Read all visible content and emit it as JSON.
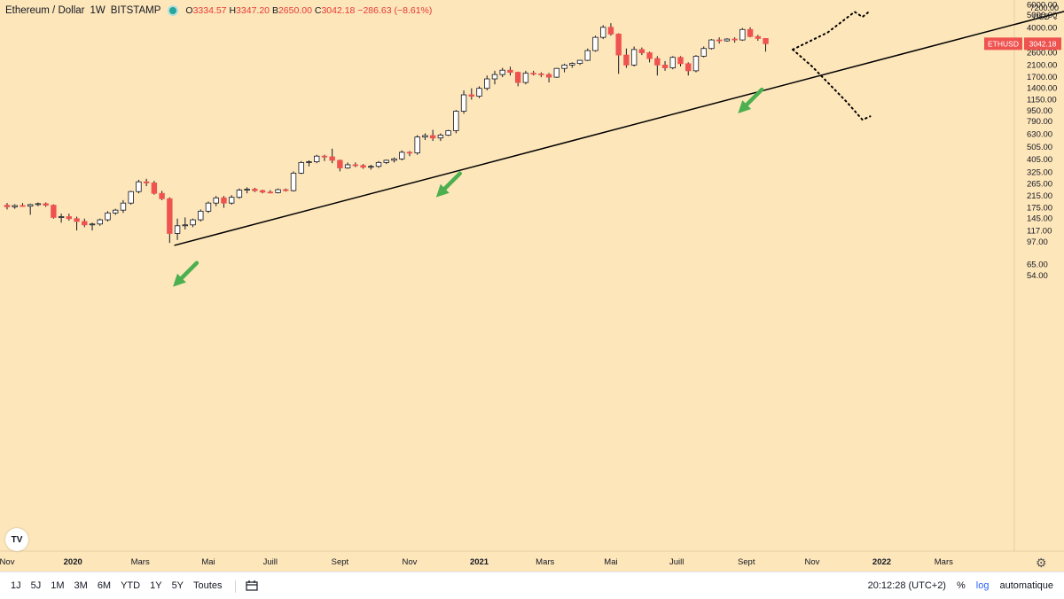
{
  "header": {
    "symbol": "Ethereum / Dollar",
    "interval": "1W",
    "exchange": "BITSTAMP",
    "o_label": "O",
    "o_value": "3334.57",
    "h_label": "H",
    "h_value": "3347.20",
    "b_label": "B",
    "b_value": "2650.00",
    "c_label": "C",
    "c_value": "3042.18",
    "change": "−286.63 (−8.61%)"
  },
  "currency": {
    "line1": "7200.00",
    "line2": "USD ⌄"
  },
  "price_tag": {
    "ticker": "ETHUSD",
    "value": "3042.18"
  },
  "logo_text": "TV",
  "toolbar": {
    "ranges": [
      "1J",
      "5J",
      "1M",
      "3M",
      "6M",
      "YTD",
      "1Y",
      "5Y",
      "Toutes"
    ],
    "time": "20:12:28 (UTC+2)",
    "percent": "%",
    "log": "log",
    "auto": "automatique"
  },
  "colors": {
    "up_body": "#ffffff",
    "down_body": "#ef5350",
    "wick": "#131722",
    "background": "#fde6ba",
    "arrow": "#4caf50"
  },
  "chart_data": {
    "type": "candlestick",
    "scale": "log",
    "ylim": [
      49,
      7200
    ],
    "y_ticks": [
      6000,
      5000,
      4000,
      3200,
      2600,
      2100,
      1700,
      1400,
      1150,
      950,
      790,
      630,
      505,
      405,
      325,
      265,
      215,
      175,
      145,
      117,
      97,
      65,
      54
    ],
    "y_tick_labels": [
      "6000.00",
      "5000.00",
      "4000.00",
      "3200.00",
      "2600.00",
      "2100.00",
      "1700.00",
      "1400.00",
      "1150.00",
      "950.00",
      "790.00",
      "630.00",
      "505.00",
      "405.00",
      "325.00",
      "265.00",
      "215.00",
      "175.00",
      "145.00",
      "117.00",
      "97.00",
      "65.00",
      "54.00"
    ],
    "x_labels": [
      "Nov",
      "2020",
      "Mars",
      "Mai",
      "Juill",
      "Sept",
      "Nov",
      "2021",
      "Mars",
      "Mai",
      "Juill",
      "Sept",
      "Nov",
      "2022",
      "Mars"
    ],
    "x_label_weeks": [
      0,
      8.5,
      17.2,
      26,
      34,
      43,
      52,
      61,
      69.5,
      78,
      86.5,
      95.5,
      104,
      113,
      121
    ],
    "week0": "2019-10-28",
    "candles": [
      [
        183,
        190,
        170,
        178
      ],
      [
        178,
        186,
        172,
        182
      ],
      [
        182,
        190,
        178,
        180
      ],
      [
        180,
        188,
        155,
        185
      ],
      [
        185,
        192,
        180,
        188
      ],
      [
        188,
        192,
        178,
        183
      ],
      [
        183,
        186,
        145,
        148
      ],
      [
        148,
        158,
        135,
        150
      ],
      [
        150,
        158,
        140,
        145
      ],
      [
        145,
        150,
        118,
        138
      ],
      [
        138,
        145,
        125,
        130
      ],
      [
        130,
        135,
        118,
        132
      ],
      [
        132,
        145,
        128,
        142
      ],
      [
        142,
        165,
        138,
        160
      ],
      [
        160,
        172,
        155,
        168
      ],
      [
        168,
        200,
        160,
        190
      ],
      [
        190,
        235,
        185,
        232
      ],
      [
        232,
        285,
        225,
        275
      ],
      [
        275,
        290,
        255,
        270
      ],
      [
        270,
        280,
        220,
        225
      ],
      [
        225,
        235,
        200,
        205
      ],
      [
        205,
        210,
        95,
        112
      ],
      [
        112,
        145,
        100,
        128
      ],
      [
        128,
        148,
        120,
        130
      ],
      [
        130,
        145,
        125,
        142
      ],
      [
        142,
        170,
        138,
        165
      ],
      [
        165,
        195,
        160,
        190
      ],
      [
        190,
        215,
        180,
        208
      ],
      [
        208,
        215,
        175,
        190
      ],
      [
        190,
        218,
        185,
        210
      ],
      [
        210,
        245,
        205,
        238
      ],
      [
        238,
        250,
        225,
        242
      ],
      [
        242,
        248,
        230,
        236
      ],
      [
        236,
        240,
        225,
        230
      ],
      [
        230,
        238,
        225,
        228
      ],
      [
        228,
        245,
        225,
        240
      ],
      [
        240,
        245,
        232,
        236
      ],
      [
        236,
        330,
        232,
        320
      ],
      [
        320,
        395,
        315,
        385
      ],
      [
        385,
        400,
        360,
        390
      ],
      [
        390,
        440,
        380,
        430
      ],
      [
        430,
        440,
        395,
        425
      ],
      [
        425,
        490,
        380,
        400
      ],
      [
        400,
        405,
        330,
        350
      ],
      [
        350,
        385,
        345,
        370
      ],
      [
        370,
        385,
        355,
        365
      ],
      [
        365,
        375,
        345,
        355
      ],
      [
        355,
        370,
        340,
        360
      ],
      [
        360,
        395,
        350,
        385
      ],
      [
        385,
        405,
        375,
        400
      ],
      [
        400,
        420,
        385,
        410
      ],
      [
        410,
        475,
        400,
        460
      ],
      [
        460,
        470,
        430,
        455
      ],
      [
        455,
        620,
        440,
        600
      ],
      [
        600,
        640,
        570,
        615
      ],
      [
        615,
        680,
        560,
        590
      ],
      [
        590,
        640,
        560,
        620
      ],
      [
        620,
        680,
        610,
        670
      ],
      [
        670,
        960,
        640,
        940
      ],
      [
        940,
        1350,
        900,
        1250
      ],
      [
        1250,
        1400,
        1150,
        1220
      ],
      [
        1220,
        1450,
        1180,
        1400
      ],
      [
        1400,
        1750,
        1350,
        1650
      ],
      [
        1650,
        1900,
        1500,
        1780
      ],
      [
        1780,
        2000,
        1700,
        1920
      ],
      [
        1920,
        2040,
        1750,
        1850
      ],
      [
        1850,
        1870,
        1450,
        1550
      ],
      [
        1550,
        1900,
        1500,
        1820
      ],
      [
        1820,
        1900,
        1750,
        1800
      ],
      [
        1800,
        1850,
        1700,
        1780
      ],
      [
        1780,
        1830,
        1550,
        1700
      ],
      [
        1700,
        2000,
        1680,
        1980
      ],
      [
        1980,
        2150,
        1850,
        2100
      ],
      [
        2100,
        2200,
        2000,
        2160
      ],
      [
        2160,
        2300,
        2100,
        2280
      ],
      [
        2280,
        2800,
        2250,
        2700
      ],
      [
        2700,
        3500,
        2650,
        3400
      ],
      [
        3400,
        4200,
        3300,
        4050
      ],
      [
        4050,
        4350,
        3500,
        3600
      ],
      [
        3600,
        3650,
        1800,
        2500
      ],
      [
        2500,
        2800,
        2000,
        2100
      ],
      [
        2100,
        2900,
        2050,
        2750
      ],
      [
        2750,
        2850,
        2500,
        2600
      ],
      [
        2600,
        2650,
        2200,
        2350
      ],
      [
        2350,
        2450,
        1750,
        2100
      ],
      [
        2100,
        2250,
        1900,
        2000
      ],
      [
        2000,
        2450,
        1950,
        2400
      ],
      [
        2400,
        2450,
        2050,
        2150
      ],
      [
        2150,
        2200,
        1750,
        1900
      ],
      [
        1900,
        2500,
        1850,
        2450
      ],
      [
        2450,
        2900,
        2400,
        2800
      ],
      [
        2800,
        3300,
        2750,
        3250
      ],
      [
        3250,
        3400,
        3050,
        3200
      ],
      [
        3200,
        3350,
        3150,
        3300
      ],
      [
        3300,
        3400,
        3100,
        3250
      ],
      [
        3250,
        4000,
        3200,
        3900
      ],
      [
        3900,
        4050,
        3400,
        3450
      ],
      [
        3450,
        3550,
        3200,
        3335
      ],
      [
        3335,
        3347,
        2650,
        3042
      ]
    ],
    "trendline": [
      [
        21.6,
        91
      ],
      [
        145,
        7200
      ]
    ],
    "arrows": [
      {
        "week": 24.5,
        "price": 67
      },
      {
        "week": 58.5,
        "price": 318
      },
      {
        "week": 97.5,
        "price": 1370
      }
    ],
    "projections": [
      [
        [
          101.5,
          2750
        ],
        [
          106,
          3700
        ],
        [
          109.5,
          5300
        ],
        [
          110.5,
          4850
        ],
        [
          111.5,
          5400
        ]
      ],
      [
        [
          101.5,
          2750
        ],
        [
          104,
          2050
        ],
        [
          108.5,
          1100
        ],
        [
          110.5,
          810
        ],
        [
          111.5,
          860
        ]
      ]
    ]
  }
}
